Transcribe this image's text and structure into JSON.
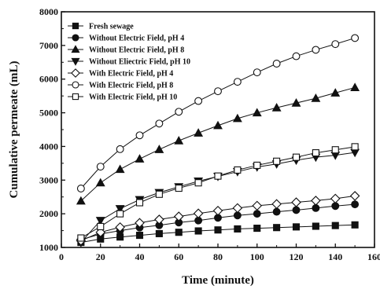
{
  "chart_data": {
    "type": "line",
    "xlabel": "Time (minute)",
    "ylabel": "Cumulative permeate (mL)",
    "xlim": [
      0,
      160
    ],
    "ylim": [
      1000,
      8000
    ],
    "xticks": [
      "0",
      "20",
      "40",
      "60",
      "80",
      "100",
      "120",
      "140",
      "160"
    ],
    "yticks": [
      "1000",
      "2000",
      "3000",
      "4000",
      "5000",
      "6000",
      "7000",
      "8000"
    ],
    "grid": false,
    "legend_position": "top-left",
    "x": [
      10,
      20,
      30,
      40,
      50,
      60,
      70,
      80,
      90,
      100,
      110,
      120,
      130,
      140,
      150
    ],
    "series": [
      {
        "name": "Fresh sewage",
        "marker": "square-filled",
        "values": [
          1150,
          1250,
          1310,
          1360,
          1410,
          1450,
          1490,
          1520,
          1550,
          1570,
          1590,
          1610,
          1630,
          1650,
          1670
        ]
      },
      {
        "name": "Without Electric Field, pH 4",
        "marker": "circle-filled",
        "values": [
          1230,
          1400,
          1500,
          1590,
          1660,
          1740,
          1800,
          1880,
          1950,
          2000,
          2060,
          2110,
          2170,
          2230,
          2280
        ]
      },
      {
        "name": "Without Electric Field, pH 8",
        "marker": "triangle-up-filled",
        "values": [
          2380,
          2920,
          3320,
          3630,
          3910,
          4170,
          4400,
          4620,
          4830,
          5000,
          5150,
          5290,
          5430,
          5590,
          5750
        ]
      },
      {
        "name": "Without Eliectric Field, pH 10",
        "marker": "triangle-down-filled",
        "values": [
          1150,
          1800,
          2150,
          2420,
          2630,
          2800,
          2970,
          3110,
          3250,
          3390,
          3480,
          3590,
          3680,
          3740,
          3820
        ]
      },
      {
        "name": "With Electric Field, pH 4",
        "marker": "diamond-open",
        "values": [
          1200,
          1450,
          1600,
          1730,
          1830,
          1920,
          2010,
          2090,
          2170,
          2240,
          2290,
          2340,
          2390,
          2450,
          2530
        ]
      },
      {
        "name": "With Electric Field, pH 8",
        "marker": "circle-open",
        "values": [
          2750,
          3400,
          3920,
          4330,
          4680,
          5030,
          5350,
          5640,
          5920,
          6200,
          6460,
          6680,
          6870,
          7040,
          7220
        ]
      },
      {
        "name": "With Electric Field, pH 10",
        "marker": "square-open",
        "values": [
          1280,
          1620,
          2000,
          2330,
          2580,
          2760,
          2920,
          3120,
          3300,
          3440,
          3560,
          3680,
          3810,
          3900,
          3990
        ]
      }
    ]
  }
}
